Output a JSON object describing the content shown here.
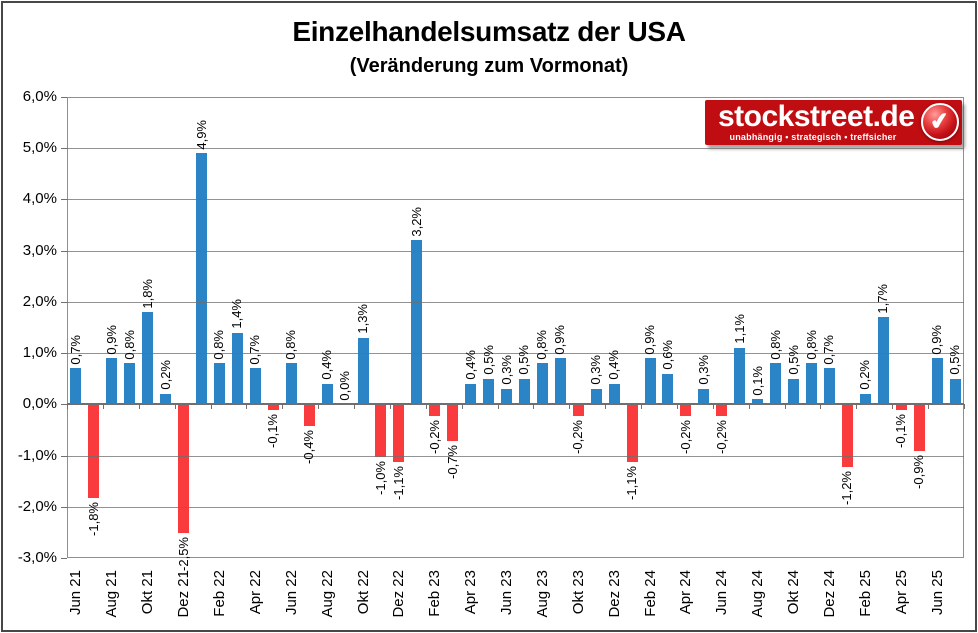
{
  "page": {
    "background": "#FFFFFF",
    "frame_border_color": "#474747"
  },
  "header": {
    "title": "Einzelhandelsumsatz der USA",
    "subtitle": "(Veränderung zum Vormonat)"
  },
  "logo": {
    "name": "stockstreet.de",
    "tagline": "unabhängig • strategisch • treffsicher",
    "background": "#C00D12",
    "badge_icon": "check-icon",
    "badge_glyph": "✔"
  },
  "chart_data": {
    "type": "bar",
    "title": "Einzelhandelsumsatz der USA",
    "subtitle": "(Veränderung zum Vormonat)",
    "xlabel": "",
    "ylabel": "",
    "ylim": [
      -3,
      6
    ],
    "grid": true,
    "legend": false,
    "colors": {
      "positive": "#2B84C6",
      "negative": "#FA3B3D",
      "gridline": "#8F8F8F",
      "axis": "#6F6F6F"
    },
    "y_ticks": [
      {
        "value": 6,
        "label": "6,0%"
      },
      {
        "value": 5,
        "label": "5,0%"
      },
      {
        "value": 4,
        "label": "4,0%"
      },
      {
        "value": 3,
        "label": "3,0%"
      },
      {
        "value": 2,
        "label": "2,0%"
      },
      {
        "value": 1,
        "label": "1,0%"
      },
      {
        "value": 0,
        "label": "0,0%"
      },
      {
        "value": -1,
        "label": "-1,0%"
      },
      {
        "value": -2,
        "label": "-2,0%"
      },
      {
        "value": -3,
        "label": "-3,0%"
      }
    ],
    "x_tick_interval": 2,
    "x_tick_labels": [
      "Jun 21",
      "Aug 21",
      "Okt 21",
      "Dez 21",
      "Feb 22",
      "Apr 22",
      "Jun 22",
      "Aug 22",
      "Okt 22",
      "Dez 22",
      "Feb 23",
      "Apr 23",
      "Jun 23",
      "Aug 23",
      "Okt 23",
      "Dez 23",
      "Feb 24",
      "Apr 24",
      "Jun 24",
      "Aug 24",
      "Okt 24",
      "Dez 24",
      "Feb 25",
      "Apr 25",
      "Jun 25"
    ],
    "points": [
      {
        "value": 0.7,
        "label": "0,7%"
      },
      {
        "value": -1.8,
        "label": "-1,8%"
      },
      {
        "value": 0.9,
        "label": "0,9%"
      },
      {
        "value": 0.8,
        "label": "0,8%"
      },
      {
        "value": 1.8,
        "label": "1,8%"
      },
      {
        "value": 0.2,
        "label": "0,2%"
      },
      {
        "value": -2.5,
        "label": "-2,5%"
      },
      {
        "value": 4.9,
        "label": "4,9%"
      },
      {
        "value": 0.8,
        "label": "0,8%"
      },
      {
        "value": 1.4,
        "label": "1,4%"
      },
      {
        "value": 0.7,
        "label": "0,7%"
      },
      {
        "value": -0.1,
        "label": "-0,1%"
      },
      {
        "value": 0.8,
        "label": "0,8%"
      },
      {
        "value": -0.4,
        "label": "-0,4%"
      },
      {
        "value": 0.4,
        "label": "0,4%"
      },
      {
        "value": 0.0,
        "label": "0,0%"
      },
      {
        "value": 1.3,
        "label": "1,3%"
      },
      {
        "value": -1.0,
        "label": "-1,0%"
      },
      {
        "value": -1.1,
        "label": "-1,1%"
      },
      {
        "value": 3.2,
        "label": "3,2%"
      },
      {
        "value": -0.2,
        "label": "-0,2%"
      },
      {
        "value": -0.7,
        "label": "-0,7%"
      },
      {
        "value": 0.4,
        "label": "0,4%"
      },
      {
        "value": 0.5,
        "label": "0,5%"
      },
      {
        "value": 0.3,
        "label": "0,3%"
      },
      {
        "value": 0.5,
        "label": "0,5%"
      },
      {
        "value": 0.8,
        "label": "0,8%"
      },
      {
        "value": 0.9,
        "label": "0,9%"
      },
      {
        "value": -0.2,
        "label": "-0,2%"
      },
      {
        "value": 0.3,
        "label": "0,3%"
      },
      {
        "value": 0.4,
        "label": "0,4%"
      },
      {
        "value": -1.1,
        "label": "-1,1%"
      },
      {
        "value": 0.9,
        "label": "0,9%"
      },
      {
        "value": 0.6,
        "label": "0,6%"
      },
      {
        "value": -0.2,
        "label": "-0,2%"
      },
      {
        "value": 0.3,
        "label": "0,3%"
      },
      {
        "value": -0.2,
        "label": "-0,2%"
      },
      {
        "value": 1.1,
        "label": "1,1%"
      },
      {
        "value": 0.1,
        "label": "0,1%"
      },
      {
        "value": 0.8,
        "label": "0,8%"
      },
      {
        "value": 0.5,
        "label": "0,5%"
      },
      {
        "value": 0.8,
        "label": "0,8%"
      },
      {
        "value": 0.7,
        "label": "0,7%"
      },
      {
        "value": -1.2,
        "label": "-1,2%"
      },
      {
        "value": 0.2,
        "label": "0,2%"
      },
      {
        "value": 1.7,
        "label": "1,7%"
      },
      {
        "value": -0.1,
        "label": "-0,1%"
      },
      {
        "value": -0.9,
        "label": "-0,9%"
      },
      {
        "value": 0.9,
        "label": "0,9%"
      },
      {
        "value": 0.5,
        "label": "0,5%"
      }
    ]
  }
}
